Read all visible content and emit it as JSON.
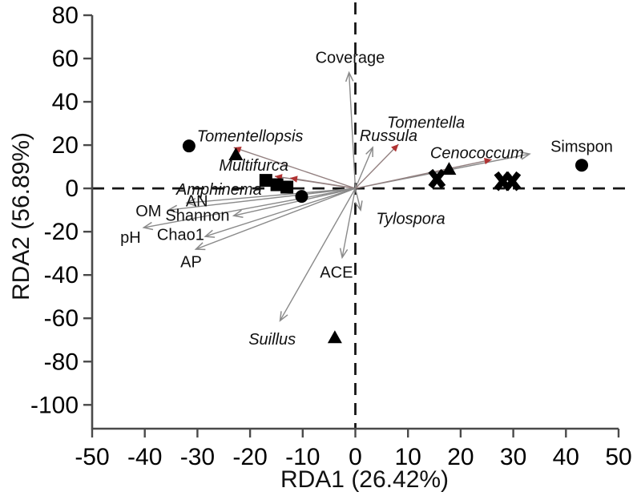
{
  "figure": {
    "background": "#ffffff",
    "axis_color": "#4a4a4a",
    "tick_label_color": "#000000",
    "dash_color": "#151515",
    "arrow_color": "#8a8a8a",
    "species_shaft_color": "#938080",
    "red_tip_color": "#b03333",
    "marker_color": "#000000",
    "label_color": "#111111"
  },
  "chart_data": {
    "type": "scatter",
    "title": "",
    "xlabel": "RDA1 (26.42%)",
    "ylabel": "RDA2 (56.89%)",
    "xlim": [
      -50,
      50
    ],
    "ylim": [
      -111,
      80
    ],
    "xticks": [
      -50,
      -40,
      -30,
      -20,
      -10,
      0,
      10,
      20,
      30,
      40,
      50
    ],
    "yticks": [
      80,
      60,
      40,
      20,
      0,
      -20,
      -40,
      -60,
      -80,
      -100
    ],
    "grid": false,
    "zero_reference_lines": "dashed",
    "legend": "none",
    "sites": [
      {
        "name": "sites-circle",
        "marker": "circle",
        "points": [
          [
            -31.6,
            19.6
          ],
          [
            -10.2,
            -3.7
          ],
          [
            43.0,
            10.7
          ]
        ]
      },
      {
        "name": "sites-triangle",
        "marker": "triangle",
        "points": [
          [
            -22.7,
            15.6
          ],
          [
            17.8,
            8.9
          ],
          [
            -3.9,
            -68.9
          ]
        ]
      },
      {
        "name": "sites-square",
        "marker": "square",
        "points": [
          [
            -17.0,
            3.7
          ],
          [
            -14.9,
            1.7
          ],
          [
            -13.0,
            0.6
          ]
        ]
      },
      {
        "name": "sites-x",
        "marker": "x",
        "points": [
          [
            15.5,
            4.4
          ],
          [
            28.0,
            3.3
          ],
          [
            29.8,
            3.3
          ]
        ]
      }
    ],
    "vectors": [
      {
        "label": "Coverage",
        "x": -1.2,
        "y": 53.5,
        "italic": false,
        "tip": "gray",
        "label_x": -1.0,
        "label_y": 60.5
      },
      {
        "label": "Russula",
        "x": 3.3,
        "y": 18.9,
        "italic": true,
        "tip": "gray",
        "label_x": 6.3,
        "label_y": 24.4
      },
      {
        "label": "Tomentella",
        "x": 8.2,
        "y": 20.4,
        "italic": true,
        "tip": "red",
        "label_x": 13.4,
        "label_y": 30.5
      },
      {
        "label": "Simspon",
        "x": 33.1,
        "y": 15.9,
        "italic": false,
        "tip": "gray",
        "label_x": 43.0,
        "label_y": 19.5
      },
      {
        "label": "Cenococcum",
        "x": 25.9,
        "y": 13.3,
        "italic": true,
        "tip": "red",
        "label_x": 23.1,
        "label_y": 16.5
      },
      {
        "label": "Tylospora",
        "x": 1.0,
        "y": -10.0,
        "italic": true,
        "tip": "gray",
        "label_x": 10.5,
        "label_y": -13.8
      },
      {
        "label": "ACE",
        "x": -2.5,
        "y": -31.9,
        "italic": false,
        "tip": "gray",
        "label_x": -3.6,
        "label_y": -38.6
      },
      {
        "label": "Suillus",
        "x": -14.3,
        "y": -61.1,
        "italic": true,
        "tip": "gray",
        "label_x": -15.8,
        "label_y": -69.5
      },
      {
        "label": "Tomentellopsis",
        "x": -23.1,
        "y": 18.9,
        "italic": true,
        "tip": "red",
        "label_x": -20.0,
        "label_y": 24.2
      },
      {
        "label": "Multifurca",
        "x": -15.3,
        "y": 5.6,
        "italic": true,
        "tip": "red",
        "label_x": -19.3,
        "label_y": 10.8
      },
      {
        "label": "Amphinema",
        "x": -12.4,
        "y": 4.8,
        "italic": true,
        "tip": "red",
        "label_x": -25.9,
        "label_y": -0.4
      },
      {
        "label": "AN",
        "x": -32.0,
        "y": -6.7,
        "italic": false,
        "tip": "gray",
        "label_x": -30.1,
        "label_y": -5.6
      },
      {
        "label": "OM",
        "x": -35.5,
        "y": -10.0,
        "italic": false,
        "tip": "gray",
        "label_x": -39.3,
        "label_y": -10.4
      },
      {
        "label": "Shannon",
        "x": -23.1,
        "y": -12.6,
        "italic": false,
        "tip": "gray",
        "label_x": -30.0,
        "label_y": -12.3
      },
      {
        "label": "pH",
        "x": -40.2,
        "y": -18.1,
        "italic": false,
        "tip": "gray",
        "label_x": -42.7,
        "label_y": -22.6
      },
      {
        "label": "Chao1",
        "x": -28.5,
        "y": -22.2,
        "italic": false,
        "tip": "gray",
        "label_x": -33.2,
        "label_y": -21.2
      },
      {
        "label": "AP",
        "x": -30.3,
        "y": -28.1,
        "italic": false,
        "tip": "gray",
        "label_x": -31.2,
        "label_y": -33.8
      }
    ]
  }
}
